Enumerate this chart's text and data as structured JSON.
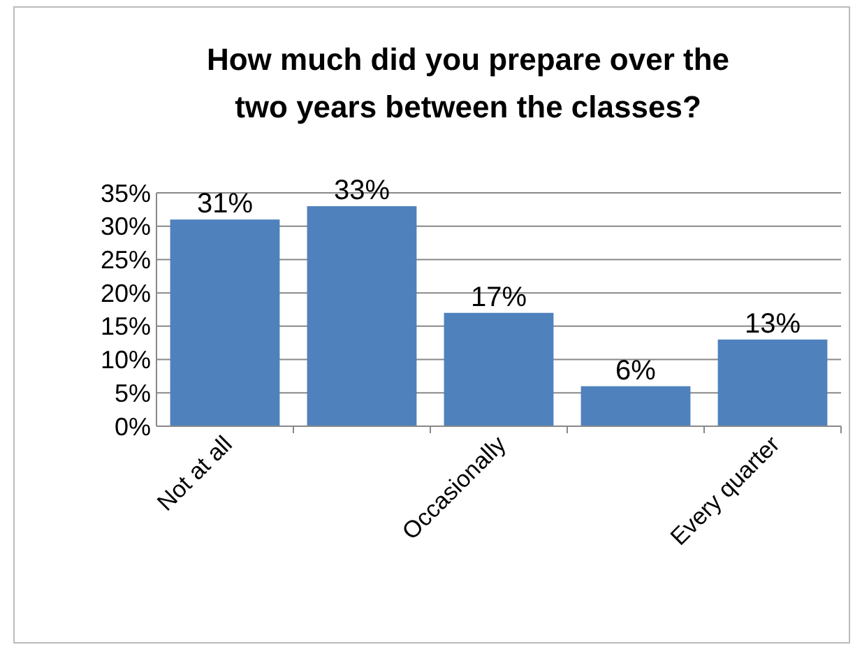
{
  "chart_data": {
    "type": "bar",
    "title": "How much did you prepare over the two years between the classes?",
    "categories": [
      "Not at all",
      null,
      "Occasionally",
      null,
      "Every quarter"
    ],
    "values": [
      31,
      33,
      17,
      6,
      13
    ],
    "value_labels": [
      "31%",
      "33%",
      "17%",
      "6%",
      "13%"
    ],
    "color": "#4f81bd",
    "ylim": [
      0,
      35
    ],
    "yticks": [
      {
        "value": 0,
        "label": "0%"
      },
      {
        "value": 5,
        "label": "5%"
      },
      {
        "value": 10,
        "label": "10%"
      },
      {
        "value": 15,
        "label": "15%"
      },
      {
        "value": 20,
        "label": "20%"
      },
      {
        "value": 25,
        "label": "25%"
      },
      {
        "value": 30,
        "label": "30%"
      },
      {
        "value": 35,
        "label": "35%"
      }
    ],
    "grid": "y"
  }
}
